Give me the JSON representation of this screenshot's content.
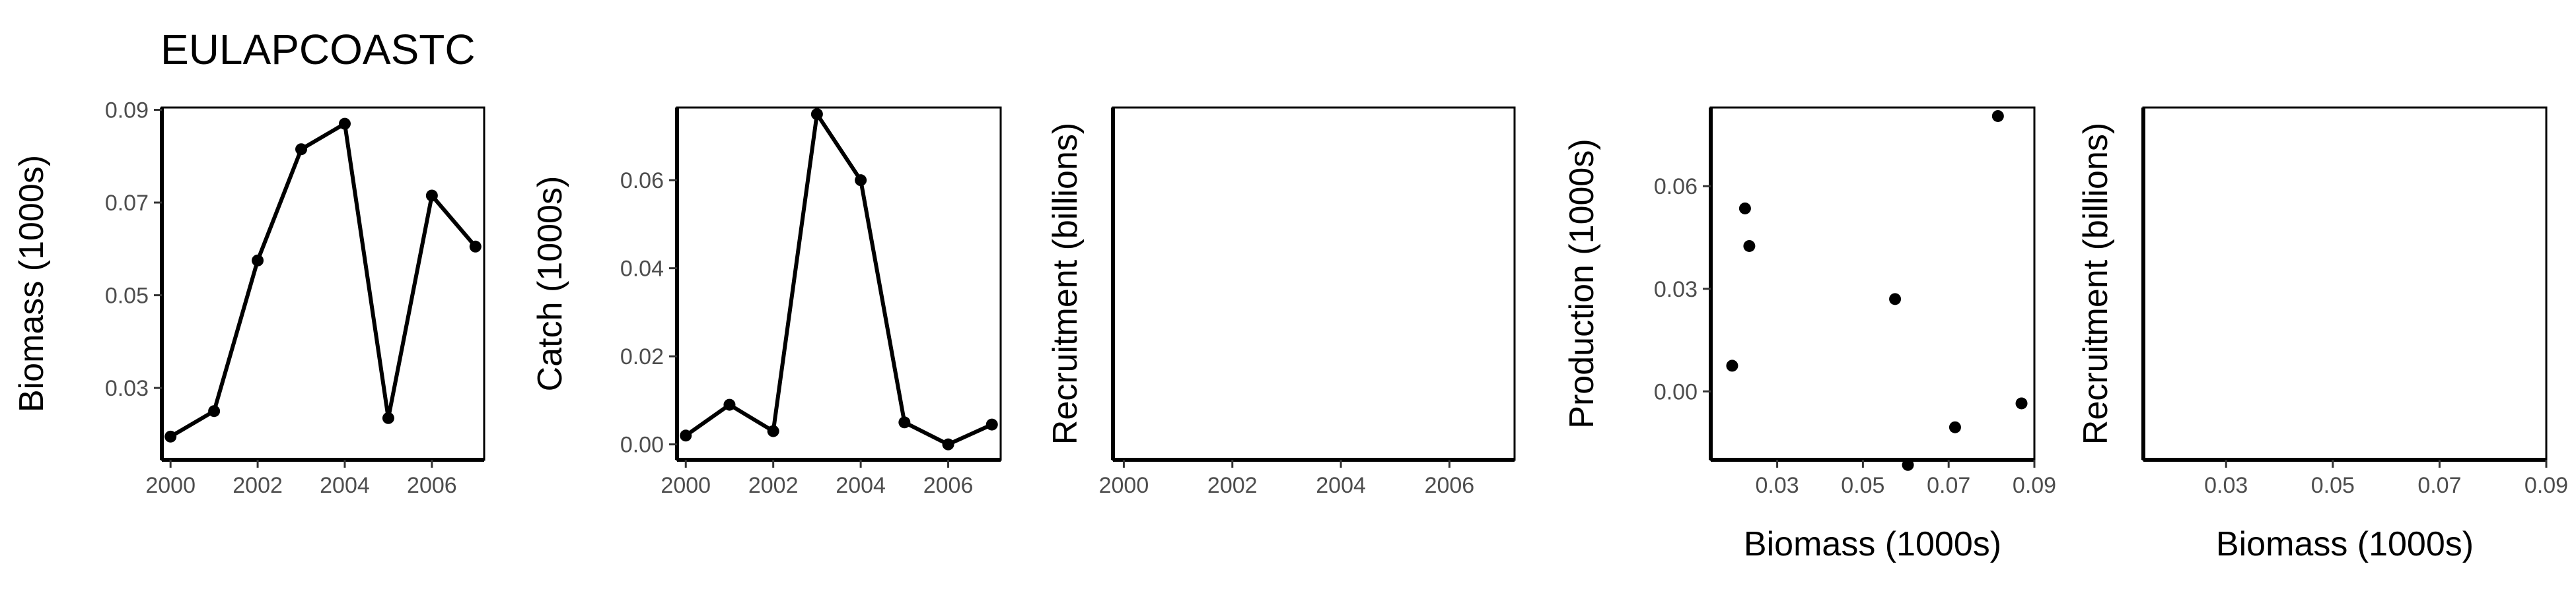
{
  "title": "EULAPCOASTC",
  "chart_data": [
    {
      "type": "line",
      "xlabel": "",
      "ylabel": "Biomass (1000s)",
      "xlim": [
        1999.8,
        2007.2
      ],
      "ylim": [
        0.0145,
        0.0905
      ],
      "xticks": [
        2000,
        2002,
        2004,
        2006
      ],
      "xtick_labels": [
        "2000",
        "2002",
        "2004",
        "2006"
      ],
      "yticks": [
        0.03,
        0.05,
        0.07,
        0.09
      ],
      "ytick_labels": [
        "0.03",
        "0.05",
        "0.07",
        "0.09"
      ],
      "grid": false,
      "x": [
        2000,
        2001,
        2002,
        2003,
        2004,
        2005,
        2006,
        2007
      ],
      "y": [
        0.0195,
        0.025,
        0.0575,
        0.0815,
        0.087,
        0.0235,
        0.0715,
        0.0605
      ]
    },
    {
      "type": "line",
      "xlabel": "",
      "ylabel": "Catch (1000s)",
      "xlim": [
        1999.8,
        2007.2
      ],
      "ylim": [
        -0.0035,
        0.0765
      ],
      "xticks": [
        2000,
        2002,
        2004,
        2006
      ],
      "xtick_labels": [
        "2000",
        "2002",
        "2004",
        "2006"
      ],
      "yticks": [
        0.0,
        0.02,
        0.04,
        0.06
      ],
      "ytick_labels": [
        "0.00",
        "0.02",
        "0.04",
        "0.06"
      ],
      "grid": false,
      "x": [
        2000,
        2001,
        2002,
        2003,
        2004,
        2005,
        2006,
        2007
      ],
      "y": [
        0.002,
        0.009,
        0.003,
        0.075,
        0.06,
        0.005,
        0.0,
        0.0045
      ]
    },
    {
      "type": "line",
      "xlabel": "",
      "ylabel": "Recruitment (billions)",
      "xlim": [
        1999.8,
        2007.2
      ],
      "ylim": [
        0,
        1
      ],
      "xticks": [
        2000,
        2002,
        2004,
        2006
      ],
      "xtick_labels": [
        "2000",
        "2002",
        "2004",
        "2006"
      ],
      "yticks": [],
      "ytick_labels": [],
      "grid": false,
      "x": [],
      "y": []
    },
    {
      "type": "scatter",
      "xlabel": "Biomass (1000s)",
      "ylabel": "Production (1000s)",
      "xlim": [
        0.0145,
        0.09
      ],
      "ylim": [
        -0.02,
        0.083
      ],
      "xticks": [
        0.03,
        0.05,
        0.07,
        0.09
      ],
      "xtick_labels": [
        "0.03",
        "0.05",
        "0.07",
        "0.09"
      ],
      "yticks": [
        0.0,
        0.03,
        0.06
      ],
      "ytick_labels": [
        "0.00",
        "0.03",
        "0.06"
      ],
      "grid": false,
      "x": [
        0.0195,
        0.0225,
        0.0235,
        0.0575,
        0.0605,
        0.0715,
        0.0815,
        0.087
      ],
      "y": [
        0.0075,
        0.0535,
        0.0425,
        0.027,
        -0.0215,
        -0.0105,
        0.0805,
        -0.0035
      ]
    },
    {
      "type": "scatter",
      "xlabel": "Biomass (1000s)",
      "ylabel": "Recruitment (billions)",
      "xlim": [
        0.0145,
        0.09
      ],
      "ylim": [
        0,
        1
      ],
      "xticks": [
        0.03,
        0.05,
        0.07,
        0.09
      ],
      "xtick_labels": [
        "0.03",
        "0.05",
        "0.07",
        "0.09"
      ],
      "yticks": [],
      "ytick_labels": [],
      "grid": false,
      "x": [],
      "y": []
    }
  ]
}
